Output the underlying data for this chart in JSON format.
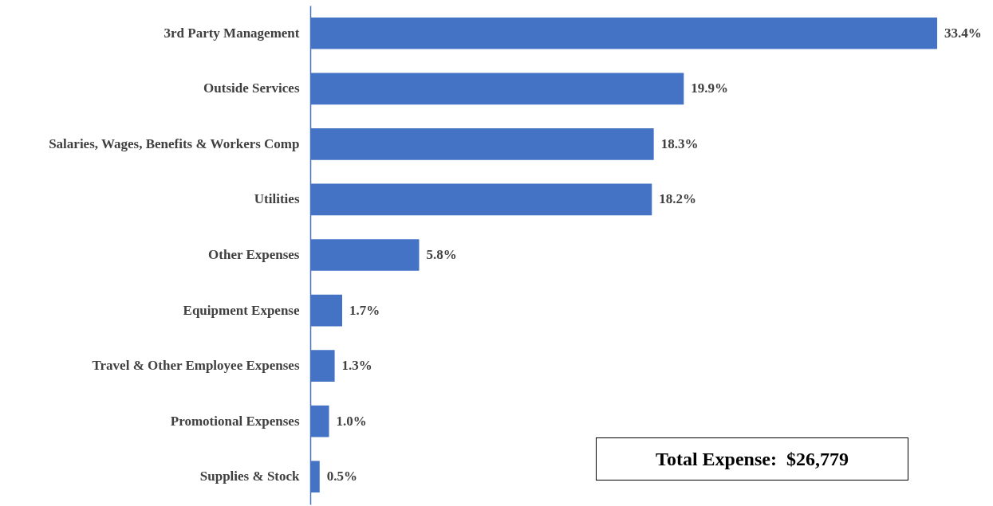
{
  "chart_data": {
    "type": "bar",
    "orientation": "horizontal",
    "categories": [
      "3rd Party Management",
      "Outside Services",
      "Salaries, Wages, Benefits & Workers Comp",
      "Utilities",
      "Other Expenses",
      "Equipment Expense",
      "Travel & Other Employee Expenses",
      "Promotional Expenses",
      "Supplies & Stock"
    ],
    "values": [
      33.4,
      19.9,
      18.3,
      18.2,
      5.8,
      1.7,
      1.3,
      1.0,
      0.5
    ],
    "value_labels": [
      "33.4%",
      "19.9%",
      "18.3%",
      "18.2%",
      "5.8%",
      "1.7%",
      "1.3%",
      "1.0%",
      "0.5%"
    ],
    "color": "#4472c4",
    "annotations": [
      "Total Expense:  $26,779"
    ]
  }
}
